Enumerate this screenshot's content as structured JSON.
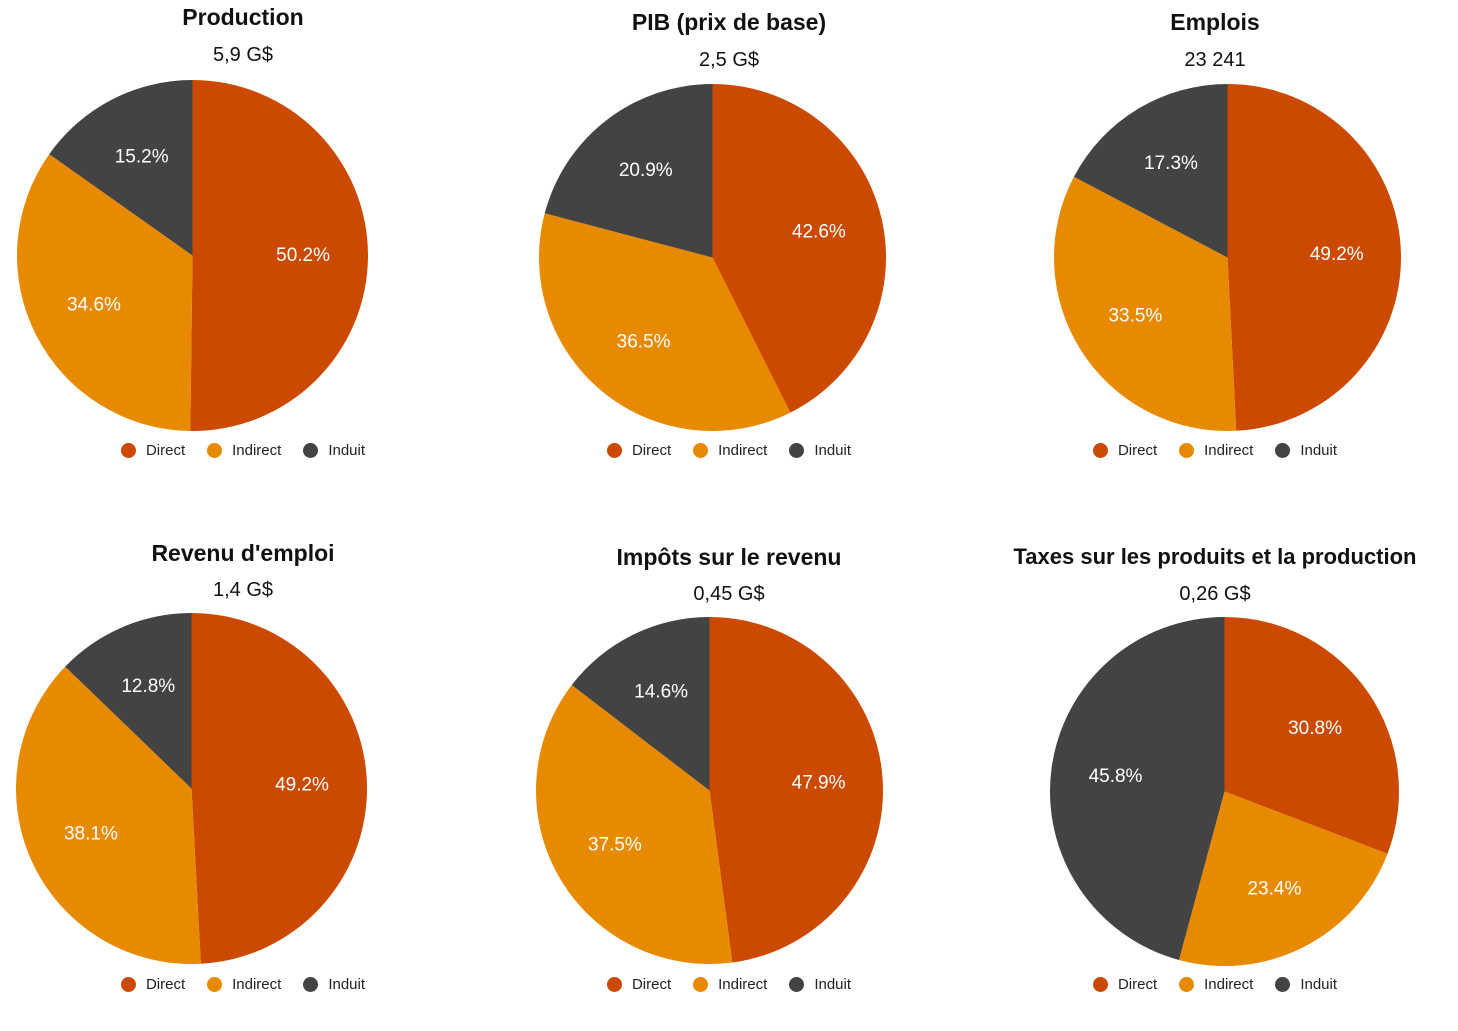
{
  "legend": [
    "Direct",
    "Indirect",
    "Induit"
  ],
  "colors": {
    "Direct": "#cc4a00",
    "Indirect": "#e88a00",
    "Induit": "#434343",
    "label": "#ffffff"
  },
  "chart_data": [
    {
      "type": "pie",
      "title": "Production",
      "subtitle": "5,9 G$",
      "categories": [
        "Direct",
        "Indirect",
        "Induit"
      ],
      "values": [
        50.2,
        34.6,
        15.2
      ],
      "labels": [
        "50.2%",
        "34.6%",
        "15.2%"
      ],
      "legend": "bottom"
    },
    {
      "type": "pie",
      "title": "PIB (prix de base)",
      "subtitle": "2,5 G$",
      "categories": [
        "Direct",
        "Indirect",
        "Induit"
      ],
      "values": [
        42.6,
        36.5,
        20.9
      ],
      "labels": [
        "42.6%",
        "36.5%",
        "20.9%"
      ],
      "legend": "bottom"
    },
    {
      "type": "pie",
      "title": "Emplois",
      "subtitle": "23 241",
      "categories": [
        "Direct",
        "Indirect",
        "Induit"
      ],
      "values": [
        49.2,
        33.5,
        17.3
      ],
      "labels": [
        "49.2%",
        "33.5%",
        "17.3%"
      ],
      "legend": "bottom"
    },
    {
      "type": "pie",
      "title": "Revenu d'emploi",
      "subtitle": "1,4 G$",
      "categories": [
        "Direct",
        "Indirect",
        "Induit"
      ],
      "values": [
        49.2,
        38.1,
        12.8
      ],
      "labels": [
        "49.2%",
        "38.1%",
        "12.8%"
      ],
      "legend": "bottom"
    },
    {
      "type": "pie",
      "title": "Impôts sur le revenu",
      "subtitle": "0,45 G$",
      "categories": [
        "Direct",
        "Indirect",
        "Induit"
      ],
      "values": [
        47.9,
        37.5,
        14.6
      ],
      "labels": [
        "47.9%",
        "37.5%",
        "14.6%"
      ],
      "legend": "bottom"
    },
    {
      "type": "pie",
      "title": "Taxes sur les produits et la production",
      "subtitle": "0,26 G$",
      "categories": [
        "Direct",
        "Indirect",
        "Induit"
      ],
      "values": [
        30.8,
        23.4,
        45.8
      ],
      "labels": [
        "30.8%",
        "23.4%",
        "45.8%"
      ],
      "legend": "bottom"
    }
  ]
}
